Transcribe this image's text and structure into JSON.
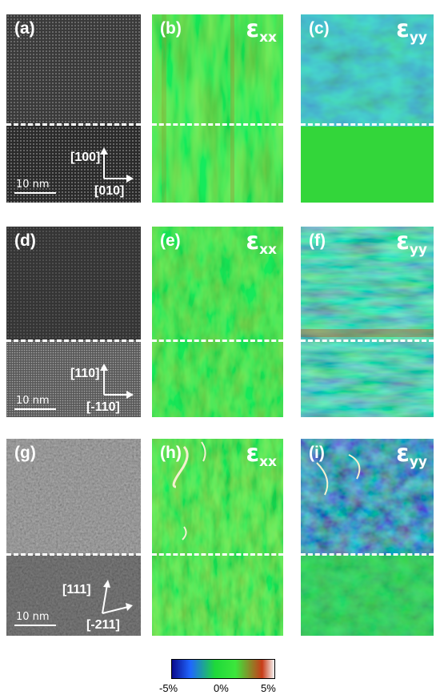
{
  "rows": [
    {
      "panels": [
        {
          "label": "(a)",
          "kind": "hrtem"
        },
        {
          "label": "(b)",
          "kind": "strain",
          "component": "ε",
          "sub": "xx"
        },
        {
          "label": "(c)",
          "kind": "strain",
          "component": "ε",
          "sub": "yy"
        }
      ],
      "direction_up": "[100]",
      "direction_right": "[010]",
      "scalebar": "10 nm"
    },
    {
      "panels": [
        {
          "label": "(d)",
          "kind": "hrtem"
        },
        {
          "label": "(e)",
          "kind": "strain",
          "component": "ε",
          "sub": "xx"
        },
        {
          "label": "(f)",
          "kind": "strain",
          "component": "ε",
          "sub": "yy"
        }
      ],
      "direction_up": "[110]",
      "direction_right": "[-110]",
      "scalebar": "10 nm"
    },
    {
      "panels": [
        {
          "label": "(g)",
          "kind": "hrtem"
        },
        {
          "label": "(h)",
          "kind": "strain",
          "component": "ε",
          "sub": "xx"
        },
        {
          "label": "(i)",
          "kind": "strain",
          "component": "ε",
          "sub": "yy"
        }
      ],
      "direction_up": "[111]",
      "direction_right": "[-211]",
      "scalebar": "10 nm"
    }
  ],
  "colorbar": {
    "ticks": [
      "-5%",
      "0%",
      "5%"
    ],
    "colors": [
      "#0a0a8c",
      "#1f66ff",
      "#1ed93a",
      "#3ce63c",
      "#c83c18",
      "#f5f5f5"
    ]
  }
}
